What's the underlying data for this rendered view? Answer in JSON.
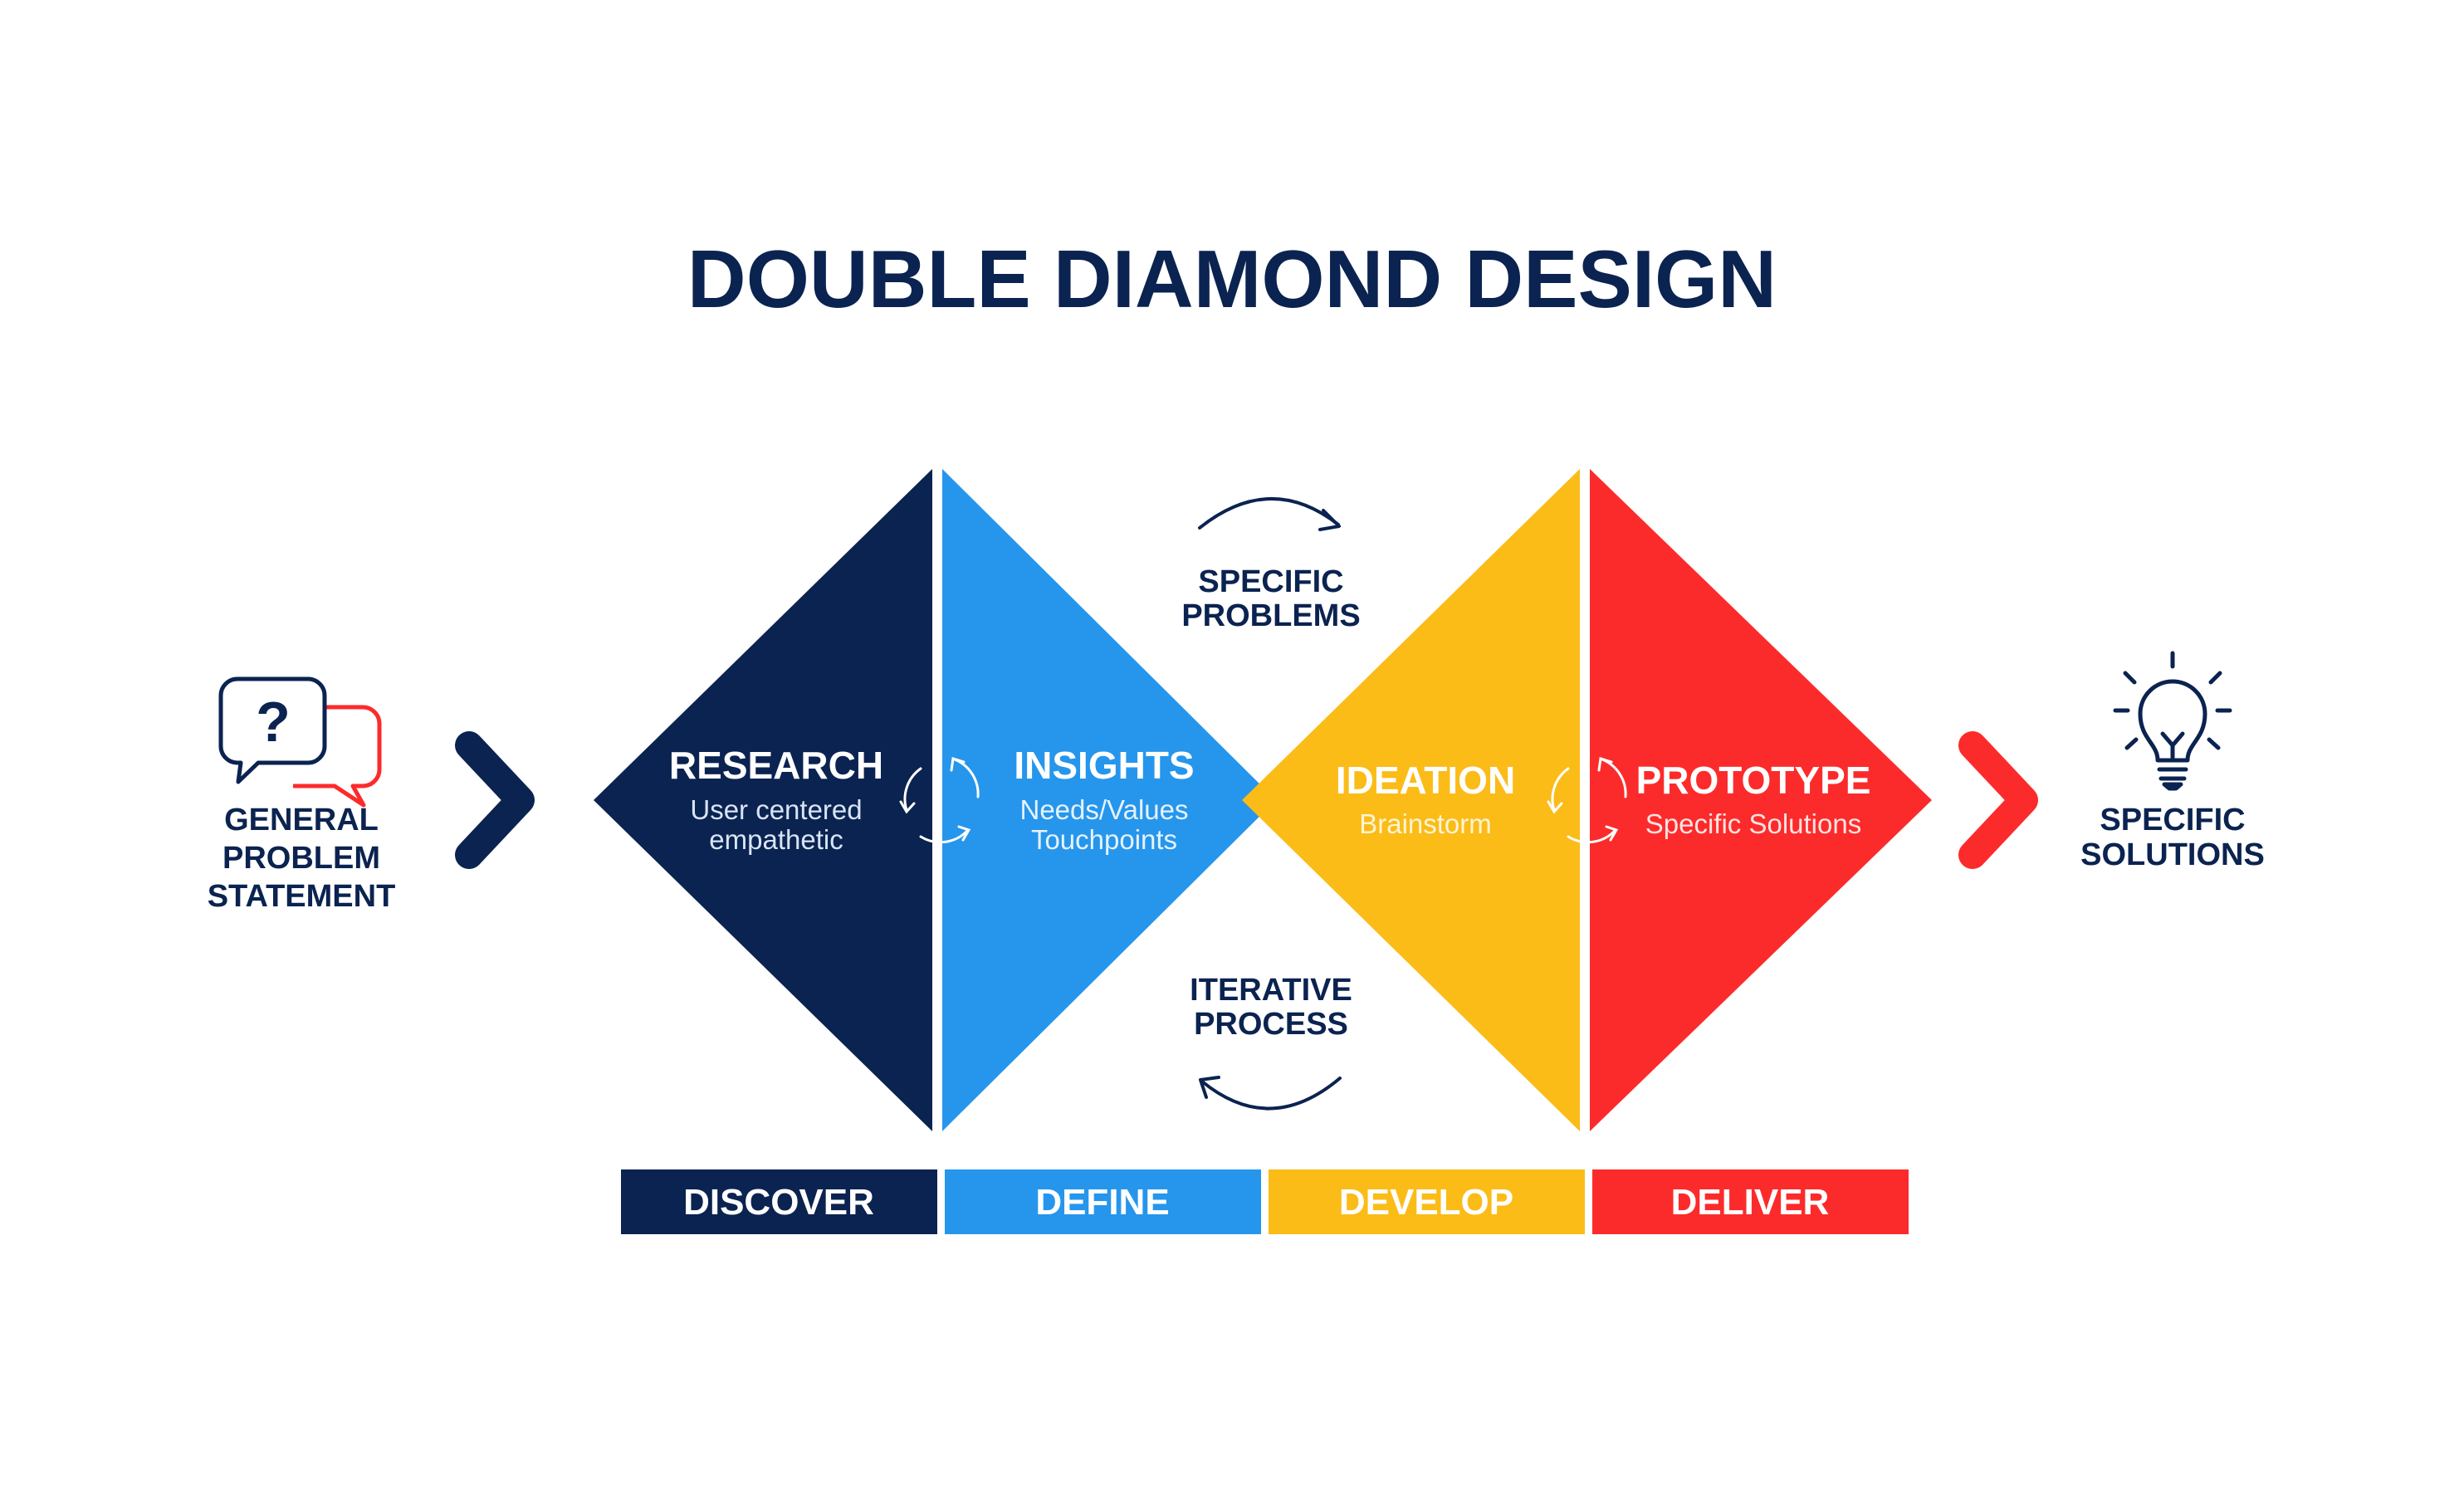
{
  "title": "DOUBLE DIAMOND DESIGN",
  "colors": {
    "navy": "#0b2350",
    "blue": "#2696ec",
    "yellow": "#fbbc18",
    "red": "#fc2b2b",
    "white": "#ffffff",
    "text_light": "#d8e4f5"
  },
  "left": {
    "icon": "speech-bubbles-question-icon",
    "question_mark": "?",
    "label_lines": [
      "GENERAL",
      "PROBLEM",
      "STATEMENT"
    ]
  },
  "right": {
    "icon": "lightbulb-icon",
    "label_lines": [
      "SPECIFIC",
      "SOLUTIONS"
    ]
  },
  "top_center": {
    "label_lines": [
      "SPECIFIC",
      "PROBLEMS"
    ]
  },
  "bottom_center": {
    "label_lines": [
      "ITERATIVE",
      "PROCESS"
    ]
  },
  "quadrants": [
    {
      "heading": "RESEARCH",
      "sub_lines": [
        "User centered",
        "empathetic"
      ]
    },
    {
      "heading": "INSIGHTS",
      "sub_lines": [
        "Needs/Values",
        "Touchpoints"
      ]
    },
    {
      "heading": "IDEATION",
      "sub_lines": [
        "Brainstorm"
      ]
    },
    {
      "heading": "PROTOTYPE",
      "sub_lines": [
        "Specific Solutions"
      ]
    }
  ],
  "phases": [
    "DISCOVER",
    "DEFINE",
    "DEVELOP",
    "DELIVER"
  ]
}
